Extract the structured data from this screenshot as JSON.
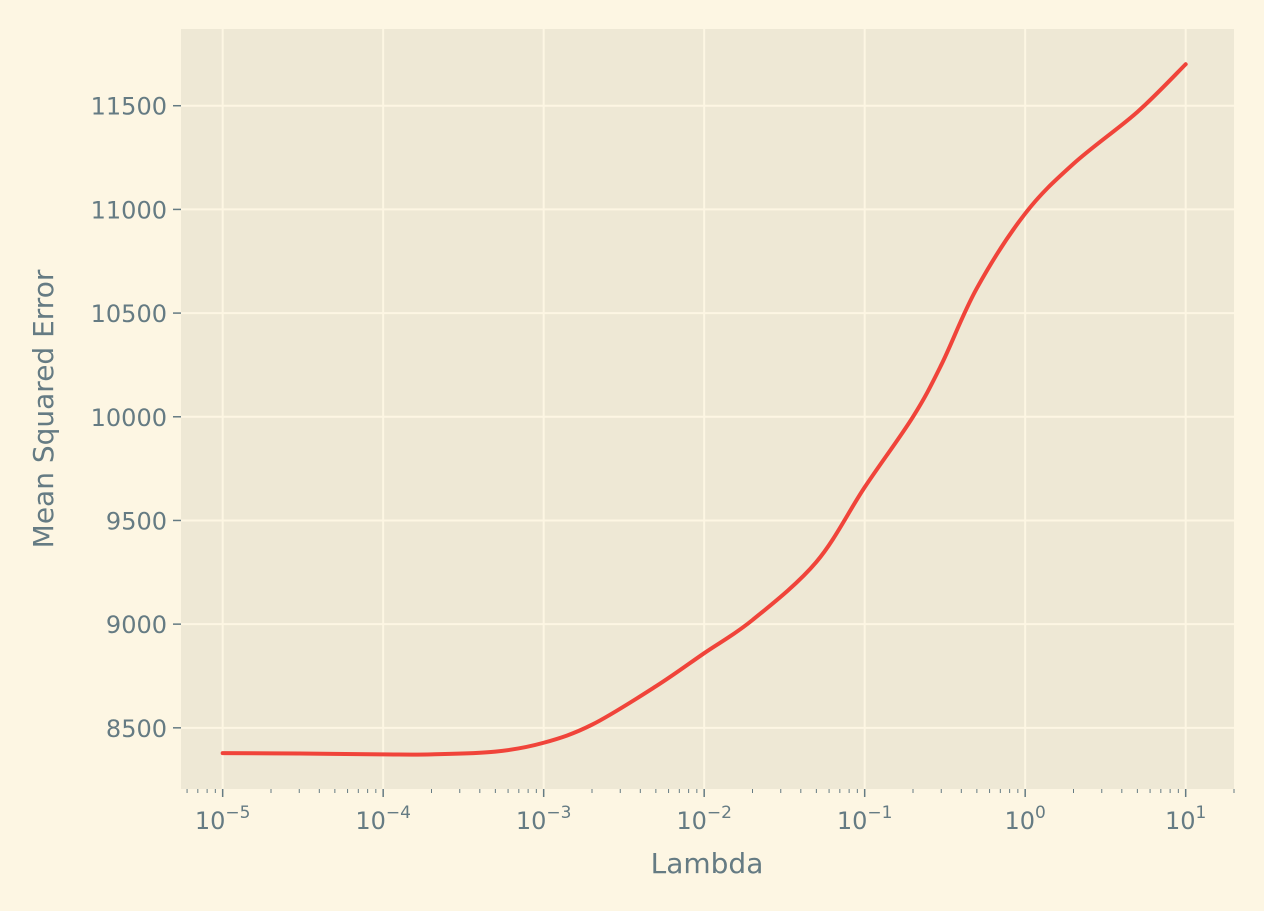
{
  "chart_data": {
    "type": "line",
    "title": "",
    "xlabel": "Lambda",
    "ylabel": "Mean Squared Error",
    "xscale": "log",
    "xlim": [
      5.5e-06,
      20
    ],
    "ylim": [
      8205,
      11870
    ],
    "grid": true,
    "colors": {
      "background": "#fdf6e3",
      "plot_background": "#eee8d5",
      "grid": "#fdf6e3",
      "text": "#657b83",
      "line": "#f0443a"
    },
    "x_ticks": [
      {
        "value": 1e-05,
        "base": "10",
        "exp": "−5"
      },
      {
        "value": 0.0001,
        "base": "10",
        "exp": "−4"
      },
      {
        "value": 0.001,
        "base": "10",
        "exp": "−3"
      },
      {
        "value": 0.01,
        "base": "10",
        "exp": "−2"
      },
      {
        "value": 0.1,
        "base": "10",
        "exp": "−1"
      },
      {
        "value": 1,
        "base": "10",
        "exp": "0"
      },
      {
        "value": 10,
        "base": "10",
        "exp": "1"
      }
    ],
    "y_ticks": [
      {
        "value": 8500,
        "label": "8500"
      },
      {
        "value": 9000,
        "label": "9000"
      },
      {
        "value": 9500,
        "label": "9500"
      },
      {
        "value": 10000,
        "label": "10000"
      },
      {
        "value": 10500,
        "label": "10500"
      },
      {
        "value": 11000,
        "label": "11000"
      },
      {
        "value": 11500,
        "label": "11500"
      }
    ],
    "series": [
      {
        "x": [
          1e-05,
          3e-05,
          0.0001,
          0.0002,
          0.0005,
          0.001,
          0.002,
          0.005,
          0.01,
          0.02,
          0.05,
          0.1,
          0.2,
          0.3,
          0.5,
          1,
          2,
          5,
          10
        ],
        "values": [
          8378,
          8376,
          8372,
          8372,
          8385,
          8428,
          8515,
          8700,
          8860,
          9020,
          9300,
          9660,
          10000,
          10250,
          10620,
          10980,
          11220,
          11470,
          11700
        ]
      }
    ]
  }
}
